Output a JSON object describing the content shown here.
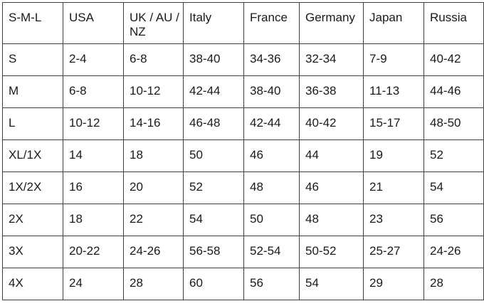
{
  "chart_data": {
    "type": "table",
    "columns": [
      "S-M-L",
      "USA",
      "UK / AU / NZ",
      "Italy",
      "France",
      "Germany",
      "Japan",
      "Russia"
    ],
    "rows": [
      [
        "S",
        "2-4",
        "6-8",
        "38-40",
        "34-36",
        "32-34",
        "7-9",
        "40-42"
      ],
      [
        "M",
        "6-8",
        "10-12",
        "42-44",
        "38-40",
        "36-38",
        "11-13",
        "44-46"
      ],
      [
        "L",
        "10-12",
        "14-16",
        "46-48",
        "42-44",
        "40-42",
        "15-17",
        "48-50"
      ],
      [
        "XL/1X",
        "14",
        "18",
        "50",
        "46",
        "44",
        "19",
        "52"
      ],
      [
        "1X/2X",
        "16",
        "20",
        "52",
        "48",
        "46",
        "21",
        "54"
      ],
      [
        "2X",
        "18",
        "22",
        "54",
        "50",
        "48",
        "23",
        "56"
      ],
      [
        "3X",
        "20-22",
        "24-26",
        "56-58",
        "52-54",
        "50-52",
        "25-27",
        "24-26"
      ],
      [
        "4X",
        "24",
        "28",
        "60",
        "56",
        "54",
        "29",
        "28"
      ]
    ],
    "colors": {
      "border": "#3f3f3f",
      "text": "#1a1a1a",
      "background": "#ffffff"
    }
  }
}
